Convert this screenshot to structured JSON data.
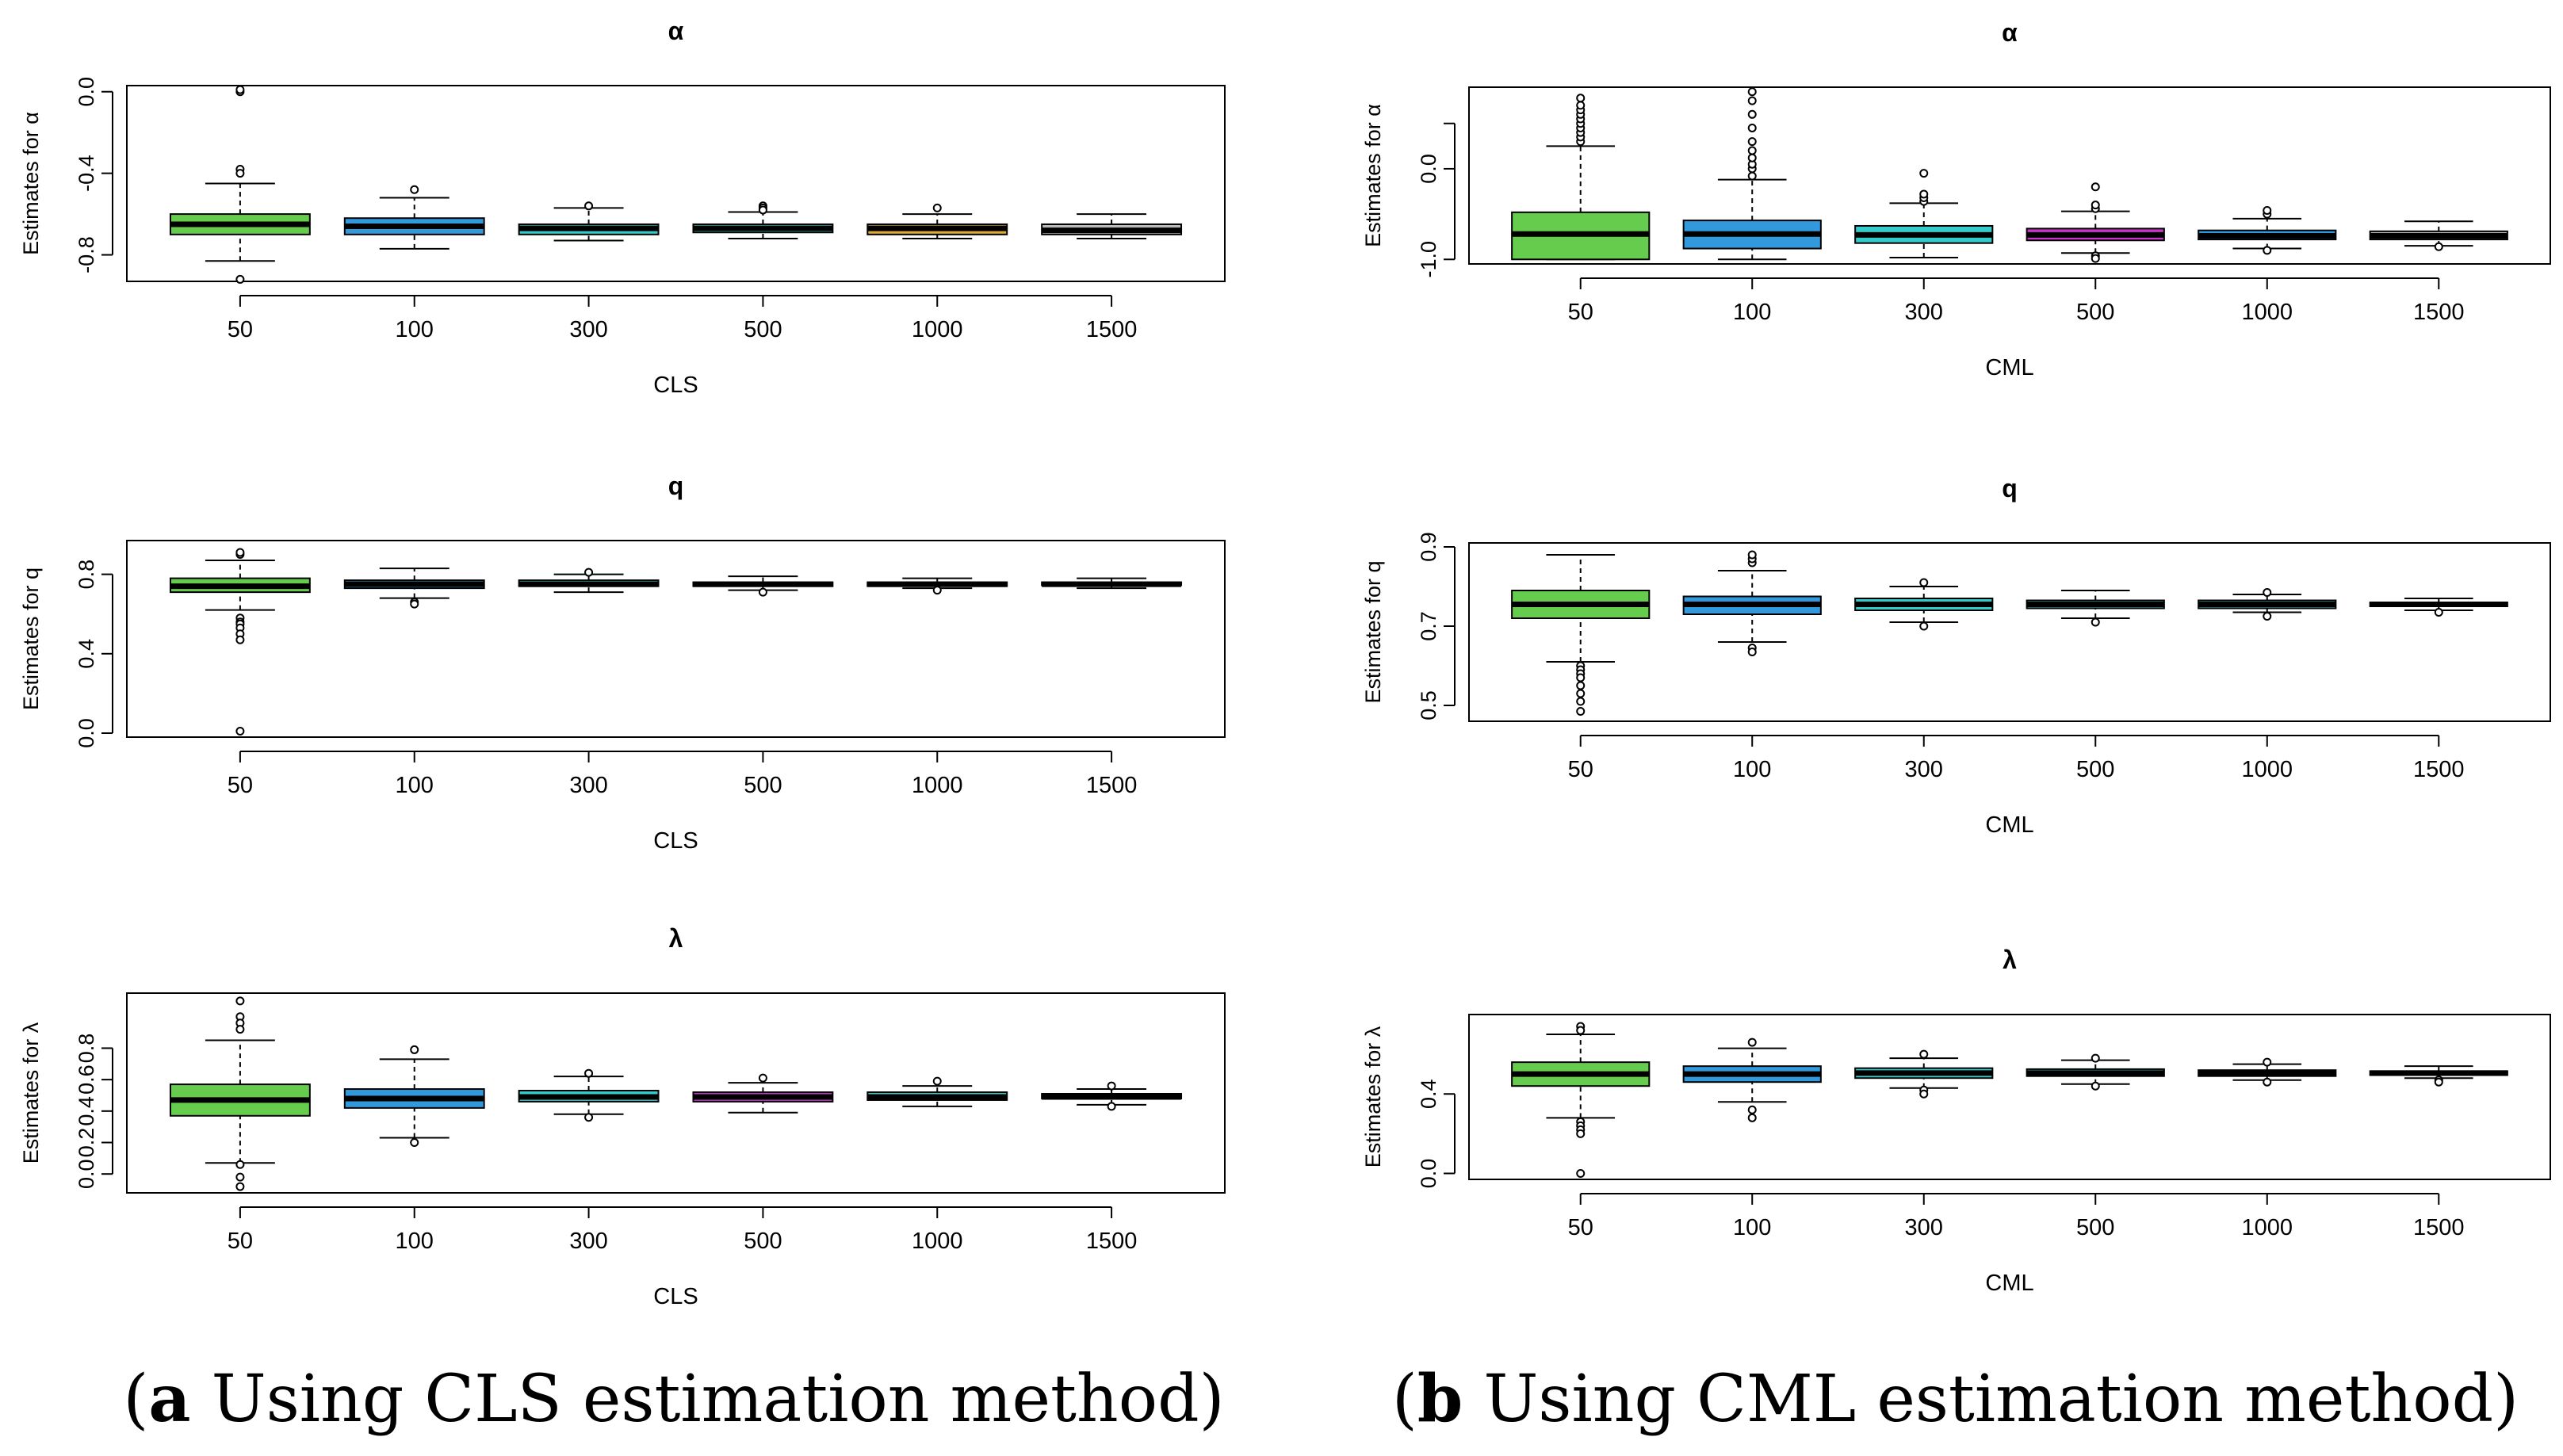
{
  "colors": {
    "green": "#66cc4d",
    "blue": "#3399dd",
    "cyan": "#33cccc",
    "magenta": "#cc33cc",
    "gold": "#ddaa33",
    "gray": "#bbbbbb",
    "axis": "#000000"
  },
  "captions": {
    "a": {
      "label": "a",
      "text": " Using CLS estimation method"
    },
    "b": {
      "label": "b",
      "text": " Using CML estimation method"
    }
  },
  "chart_data": [
    {
      "id": "cls-alpha",
      "type": "boxplot",
      "title": "α",
      "xlabel": "CLS",
      "ylabel": "Estimates for α",
      "categories": [
        "50",
        "100",
        "300",
        "500",
        "1000",
        "1500"
      ],
      "yticks": [
        0.0,
        -0.4,
        -0.8
      ],
      "ytick_labels": [
        "0.0",
        "-0.4",
        "-0.8"
      ],
      "ylim": [
        -0.93,
        0.03
      ],
      "boxes": [
        {
          "min": -0.83,
          "q1": -0.7,
          "median": -0.65,
          "q3": -0.6,
          "max": -0.45,
          "fill": "green",
          "outliers": [
            0.0,
            0.01,
            -0.38,
            -0.4,
            -0.92
          ]
        },
        {
          "min": -0.77,
          "q1": -0.7,
          "median": -0.66,
          "q3": -0.62,
          "max": -0.52,
          "fill": "blue",
          "outliers": [
            -0.48
          ]
        },
        {
          "min": -0.73,
          "q1": -0.7,
          "median": -0.67,
          "q3": -0.65,
          "max": -0.57,
          "fill": "cyan",
          "outliers": [
            -0.56
          ]
        },
        {
          "min": -0.72,
          "q1": -0.69,
          "median": -0.67,
          "q3": -0.65,
          "max": -0.59,
          "fill": "cyan",
          "outliers": [
            -0.56,
            -0.57,
            -0.58
          ]
        },
        {
          "min": -0.72,
          "q1": -0.7,
          "median": -0.67,
          "q3": -0.65,
          "max": -0.6,
          "fill": "gold",
          "outliers": [
            -0.57
          ]
        },
        {
          "min": -0.72,
          "q1": -0.7,
          "median": -0.68,
          "q3": -0.65,
          "max": -0.6,
          "fill": "gray",
          "outliers": []
        }
      ]
    },
    {
      "id": "cls-q",
      "type": "boxplot",
      "title": "q",
      "xlabel": "CLS",
      "ylabel": "Estimates for q",
      "categories": [
        "50",
        "100",
        "300",
        "500",
        "1000",
        "1500"
      ],
      "yticks": [
        0.0,
        0.4,
        0.8
      ],
      "ytick_labels": [
        "0.0",
        "0.4",
        "0.8"
      ],
      "ylim": [
        -0.02,
        0.97
      ],
      "boxes": [
        {
          "min": 0.62,
          "q1": 0.71,
          "median": 0.74,
          "q3": 0.78,
          "max": 0.87,
          "fill": "green",
          "outliers": [
            0.9,
            0.91,
            0.58,
            0.56,
            0.55,
            0.53,
            0.5,
            0.47,
            0.01
          ]
        },
        {
          "min": 0.68,
          "q1": 0.73,
          "median": 0.75,
          "q3": 0.77,
          "max": 0.83,
          "fill": "blue",
          "outliers": [
            0.66,
            0.65
          ]
        },
        {
          "min": 0.71,
          "q1": 0.74,
          "median": 0.75,
          "q3": 0.77,
          "max": 0.8,
          "fill": "cyan",
          "outliers": [
            0.81
          ]
        },
        {
          "min": 0.72,
          "q1": 0.74,
          "median": 0.75,
          "q3": 0.76,
          "max": 0.79,
          "fill": "cyan",
          "outliers": [
            0.71
          ]
        },
        {
          "min": 0.73,
          "q1": 0.74,
          "median": 0.75,
          "q3": 0.76,
          "max": 0.78,
          "fill": "cyan",
          "outliers": [
            0.72
          ]
        },
        {
          "min": 0.73,
          "q1": 0.745,
          "median": 0.75,
          "q3": 0.76,
          "max": 0.78,
          "fill": "gray",
          "outliers": []
        }
      ]
    },
    {
      "id": "cls-lambda",
      "type": "boxplot",
      "title": "λ",
      "xlabel": "CLS",
      "ylabel": "Estimates for λ",
      "categories": [
        "50",
        "100",
        "300",
        "500",
        "1000",
        "1500"
      ],
      "yticks": [
        0.0,
        0.2,
        0.4,
        0.6,
        0.8
      ],
      "ytick_labels": [
        "0.0",
        "0.2",
        "0.4",
        "0.6",
        "0.8"
      ],
      "ylim": [
        -0.12,
        1.15
      ],
      "boxes": [
        {
          "min": 0.07,
          "q1": 0.37,
          "median": 0.47,
          "q3": 0.57,
          "max": 0.85,
          "fill": "green",
          "outliers": [
            1.1,
            1.0,
            0.96,
            0.92,
            0.06,
            -0.02,
            -0.08
          ]
        },
        {
          "min": 0.23,
          "q1": 0.42,
          "median": 0.48,
          "q3": 0.54,
          "max": 0.73,
          "fill": "blue",
          "outliers": [
            0.79,
            0.2
          ]
        },
        {
          "min": 0.38,
          "q1": 0.46,
          "median": 0.49,
          "q3": 0.53,
          "max": 0.62,
          "fill": "cyan",
          "outliers": [
            0.64,
            0.36
          ]
        },
        {
          "min": 0.39,
          "q1": 0.46,
          "median": 0.49,
          "q3": 0.52,
          "max": 0.58,
          "fill": "magenta",
          "outliers": [
            0.61
          ]
        },
        {
          "min": 0.43,
          "q1": 0.47,
          "median": 0.49,
          "q3": 0.52,
          "max": 0.56,
          "fill": "cyan",
          "outliers": [
            0.59
          ]
        },
        {
          "min": 0.44,
          "q1": 0.48,
          "median": 0.49,
          "q3": 0.51,
          "max": 0.54,
          "fill": "gray",
          "outliers": [
            0.43,
            0.56
          ]
        }
      ]
    },
    {
      "id": "cml-alpha",
      "type": "boxplot",
      "title": "α",
      "xlabel": "CML",
      "ylabel": "Estimates for α",
      "categories": [
        "50",
        "100",
        "300",
        "500",
        "1000",
        "1500"
      ],
      "yticks": [
        0.5,
        0.0,
        -1.0
      ],
      "ytick_labels": [
        "",
        "0.0",
        "-1.0"
      ],
      "ylim": [
        -1.05,
        0.9
      ],
      "boxes": [
        {
          "min": -1.0,
          "q1": -1.0,
          "median": -0.72,
          "q3": -0.48,
          "max": 0.25,
          "fill": "green",
          "outliers": [
            0.3,
            0.35,
            0.4,
            0.45,
            0.5,
            0.55,
            0.6,
            0.65,
            0.7,
            0.78
          ]
        },
        {
          "min": -1.0,
          "q1": -0.88,
          "median": -0.72,
          "q3": -0.57,
          "max": -0.12,
          "fill": "blue",
          "outliers": [
            -0.08,
            0.0,
            0.05,
            0.12,
            0.2,
            0.3,
            0.45,
            0.6,
            0.75,
            0.85
          ]
        },
        {
          "min": -0.98,
          "q1": -0.82,
          "median": -0.73,
          "q3": -0.63,
          "max": -0.38,
          "fill": "cyan",
          "outliers": [
            -0.36,
            -0.32,
            -0.28,
            -0.05
          ]
        },
        {
          "min": -0.93,
          "q1": -0.79,
          "median": -0.73,
          "q3": -0.66,
          "max": -0.47,
          "fill": "magenta",
          "outliers": [
            -0.44,
            -0.4,
            -0.2,
            -0.96,
            -0.99
          ]
        },
        {
          "min": -0.88,
          "q1": -0.78,
          "median": -0.74,
          "q3": -0.68,
          "max": -0.55,
          "fill": "blue",
          "outliers": [
            -0.5,
            -0.46,
            -0.9
          ]
        },
        {
          "min": -0.85,
          "q1": -0.78,
          "median": -0.74,
          "q3": -0.69,
          "max": -0.58,
          "fill": "gray",
          "outliers": [
            -0.86
          ]
        }
      ]
    },
    {
      "id": "cml-q",
      "type": "boxplot",
      "title": "q",
      "xlabel": "CML",
      "ylabel": "Estimates for q",
      "categories": [
        "50",
        "100",
        "300",
        "500",
        "1000",
        "1500"
      ],
      "yticks": [
        0.5,
        0.7,
        0.9
      ],
      "ytick_labels": [
        "0.5",
        "0.7",
        "0.9"
      ],
      "ylim": [
        0.46,
        0.91
      ],
      "boxes": [
        {
          "min": 0.61,
          "q1": 0.72,
          "median": 0.755,
          "q3": 0.79,
          "max": 0.88,
          "fill": "green",
          "outliers": [
            0.6,
            0.59,
            0.58,
            0.57,
            0.55,
            0.53,
            0.51,
            0.485
          ]
        },
        {
          "min": 0.66,
          "q1": 0.73,
          "median": 0.755,
          "q3": 0.775,
          "max": 0.84,
          "fill": "blue",
          "outliers": [
            0.86,
            0.87,
            0.88,
            0.645,
            0.635
          ]
        },
        {
          "min": 0.71,
          "q1": 0.74,
          "median": 0.755,
          "q3": 0.77,
          "max": 0.8,
          "fill": "cyan",
          "outliers": [
            0.81,
            0.7
          ]
        },
        {
          "min": 0.72,
          "q1": 0.745,
          "median": 0.755,
          "q3": 0.765,
          "max": 0.79,
          "fill": "cyan",
          "outliers": [
            0.71
          ]
        },
        {
          "min": 0.735,
          "q1": 0.745,
          "median": 0.755,
          "q3": 0.765,
          "max": 0.78,
          "fill": "cyan",
          "outliers": [
            0.725,
            0.785
          ]
        },
        {
          "min": 0.74,
          "q1": 0.75,
          "median": 0.755,
          "q3": 0.76,
          "max": 0.77,
          "fill": "gray",
          "outliers": [
            0.735
          ]
        }
      ]
    },
    {
      "id": "cml-lambda",
      "type": "boxplot",
      "title": "λ",
      "xlabel": "CML",
      "ylabel": "Estimates for λ",
      "categories": [
        "50",
        "100",
        "300",
        "500",
        "1000",
        "1500"
      ],
      "yticks": [
        0.0,
        0.4
      ],
      "ytick_labels": [
        "0.0",
        "0.4"
      ],
      "ylim": [
        -0.03,
        0.8
      ],
      "boxes": [
        {
          "min": 0.28,
          "q1": 0.44,
          "median": 0.5,
          "q3": 0.56,
          "max": 0.7,
          "fill": "green",
          "outliers": [
            0.74,
            0.72,
            0.26,
            0.24,
            0.22,
            0.2,
            0.0
          ]
        },
        {
          "min": 0.36,
          "q1": 0.46,
          "median": 0.5,
          "q3": 0.54,
          "max": 0.63,
          "fill": "blue",
          "outliers": [
            0.66,
            0.32,
            0.28
          ]
        },
        {
          "min": 0.43,
          "q1": 0.48,
          "median": 0.505,
          "q3": 0.53,
          "max": 0.58,
          "fill": "cyan",
          "outliers": [
            0.6,
            0.42,
            0.4
          ]
        },
        {
          "min": 0.45,
          "q1": 0.49,
          "median": 0.505,
          "q3": 0.525,
          "max": 0.57,
          "fill": "cyan",
          "outliers": [
            0.58,
            0.44
          ]
        },
        {
          "min": 0.47,
          "q1": 0.49,
          "median": 0.505,
          "q3": 0.52,
          "max": 0.55,
          "fill": "cyan",
          "outliers": [
            0.56,
            0.46
          ]
        },
        {
          "min": 0.48,
          "q1": 0.495,
          "median": 0.505,
          "q3": 0.515,
          "max": 0.54,
          "fill": "gray",
          "outliers": [
            0.47,
            0.46
          ]
        }
      ]
    }
  ]
}
